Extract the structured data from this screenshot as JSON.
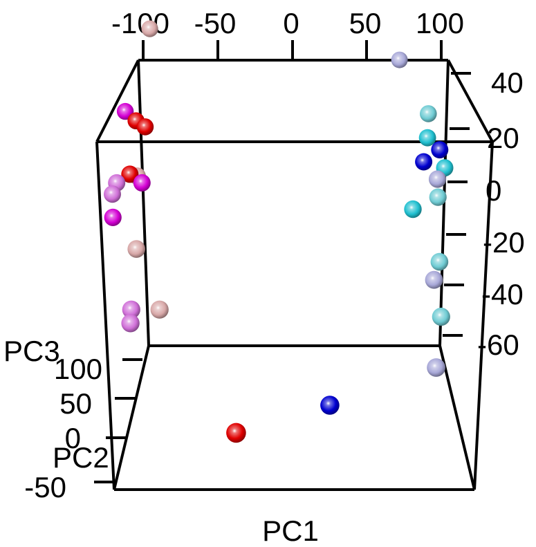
{
  "chart_data": {
    "type": "scatter",
    "dimensions": 3,
    "title": "",
    "xlabel": "PC1",
    "ylabel": "PC2",
    "zlabel": "PC3",
    "x_ticks": [
      "-100",
      "-50",
      "0",
      "50",
      "100"
    ],
    "y_ticks": [
      "-50",
      "0",
      "50",
      "100"
    ],
    "z_ticks": [
      "40",
      "20",
      "0",
      "-20",
      "-40",
      "-60"
    ],
    "colors": {
      "red": "#e00000",
      "magenta": "#d400d4",
      "orchid": "#d070d8",
      "rosybrown": "#d8a8a8",
      "blue": "#0000d0",
      "cyan": "#20c0d0",
      "lightcyan": "#70ccd4",
      "lavender": "#a8a8d8"
    },
    "points": [
      {
        "pc1": -88,
        "pc2": 140,
        "pc3": 38,
        "color": "rosybrown"
      },
      {
        "pc1": -105,
        "pc2": 130,
        "pc3": 8,
        "color": "magenta"
      },
      {
        "pc1": -98,
        "pc2": 126,
        "pc3": 5,
        "color": "red"
      },
      {
        "pc1": -92,
        "pc2": 124,
        "pc3": 3,
        "color": "red"
      },
      {
        "pc1": -98,
        "pc2": 112,
        "pc3": -14,
        "color": "rosybrown"
      },
      {
        "pc1": -103,
        "pc2": 110,
        "pc3": -13,
        "color": "red"
      },
      {
        "pc1": -95,
        "pc2": 108,
        "pc3": -16,
        "color": "magenta"
      },
      {
        "pc1": -112,
        "pc2": 108,
        "pc3": -16,
        "color": "orchid"
      },
      {
        "pc1": -115,
        "pc2": 106,
        "pc3": -20,
        "color": "orchid"
      },
      {
        "pc1": -115,
        "pc2": 100,
        "pc3": -28,
        "color": "magenta"
      },
      {
        "pc1": -100,
        "pc2": 86,
        "pc3": -38,
        "color": "rosybrown"
      },
      {
        "pc1": -105,
        "pc2": 58,
        "pc3": -57,
        "color": "orchid"
      },
      {
        "pc1": -86,
        "pc2": 58,
        "pc3": -57,
        "color": "rosybrown"
      },
      {
        "pc1": -106,
        "pc2": 50,
        "pc3": -61,
        "color": "orchid"
      },
      {
        "pc1": 80,
        "pc2": 148,
        "pc3": 25,
        "color": "lavender"
      },
      {
        "pc1": 98,
        "pc2": 124,
        "pc3": 8,
        "color": "lightcyan"
      },
      {
        "pc1": 97,
        "pc2": 116,
        "pc3": 0,
        "color": "cyan"
      },
      {
        "pc1": 105,
        "pc2": 112,
        "pc3": -4,
        "color": "blue"
      },
      {
        "pc1": 94,
        "pc2": 108,
        "pc3": -8,
        "color": "blue"
      },
      {
        "pc1": 108,
        "pc2": 106,
        "pc3": -10,
        "color": "cyan"
      },
      {
        "pc1": 103,
        "pc2": 104,
        "pc3": -14,
        "color": "lavender"
      },
      {
        "pc1": 103,
        "pc2": 98,
        "pc3": -20,
        "color": "lightcyan"
      },
      {
        "pc1": 86,
        "pc2": 94,
        "pc3": -24,
        "color": "cyan"
      },
      {
        "pc1": 103,
        "pc2": 80,
        "pc3": -42,
        "color": "lightcyan"
      },
      {
        "pc1": 99,
        "pc2": 74,
        "pc3": -48,
        "color": "lavender"
      },
      {
        "pc1": 103,
        "pc2": 60,
        "pc3": -60,
        "color": "lightcyan"
      },
      {
        "pc1": 98,
        "pc2": 30,
        "pc3": -75,
        "color": "lavender"
      },
      {
        "pc1": -40,
        "pc2": -38,
        "pc3": -90,
        "color": "red"
      },
      {
        "pc1": 25,
        "pc2": 0,
        "pc3": -85,
        "color": "blue"
      }
    ]
  }
}
